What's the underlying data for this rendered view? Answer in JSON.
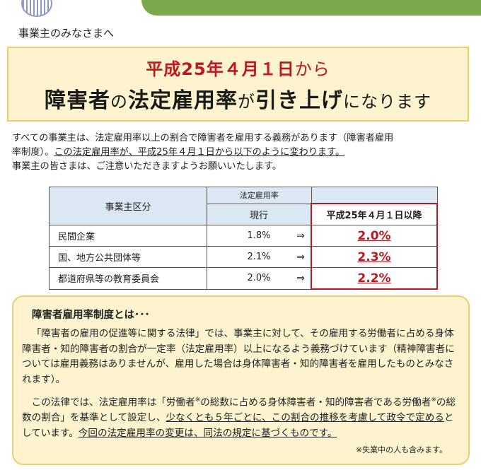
{
  "greeting": "事業主のみなさまへ",
  "headline": {
    "date": "平成25年４月１日",
    "date_suffix": "から",
    "subject": "障害者",
    "particle1": "の",
    "topic": "法定雇用率",
    "particle2": "が",
    "change": "引き上げ",
    "ending": "になります"
  },
  "intro": {
    "line1": "すべての事業主は、法定雇用率以上の割合で障害者を雇用する義務があります（障害者雇用",
    "line2_plain": "率制度）。",
    "line2_underlined": "この法定雇用率が、平成25年４月１日から以下のように変わります。",
    "line3": "事業主の皆さまは、ご注意いただきますようお願いいたします。"
  },
  "table": {
    "category_header": "事業主区分",
    "rate_header": "法定雇用率",
    "current_header": "現行",
    "new_header": "平成25年４月１日以降",
    "arrow": "⇒",
    "rows": [
      {
        "category": "民間企業",
        "current": "1.8%",
        "new": "2.0%"
      },
      {
        "category": "国、地方公共団体等",
        "current": "2.1%",
        "new": "2.3%"
      },
      {
        "category": "都道府県等の教育委員会",
        "current": "2.0%",
        "new": "2.2%"
      }
    ]
  },
  "note": {
    "title": "障害者雇用率制度とは･･･",
    "para1": "「障害者の雇用の促進等に関する法律」では、事業主に対して、その雇用する労働者に占める身体障害者・知的障害者の割合が一定率（法定雇用率）以上になるよう義務づけています（精神障害者については雇用義務はありませんが、雇用した場合は身体障害者・知的障害者を雇用したものとみなされます）。",
    "para2_a": "この法律では、法定雇用率は「労働者",
    "para2_mark": "※",
    "para2_b": "の総数に占める身体障害者・知的障害者である労働者",
    "para2_c": "の総数の割合」を基準として設定し、",
    "para2_ul1": "少なくとも５年ごとに、この割合の推移を考慮して政令で定める",
    "para2_d": "としています。",
    "para2_ul2": "今回の法定雇用率の変更は、同法の規定に基づくものです。",
    "footnote": "※失業中の人も含みます。"
  }
}
